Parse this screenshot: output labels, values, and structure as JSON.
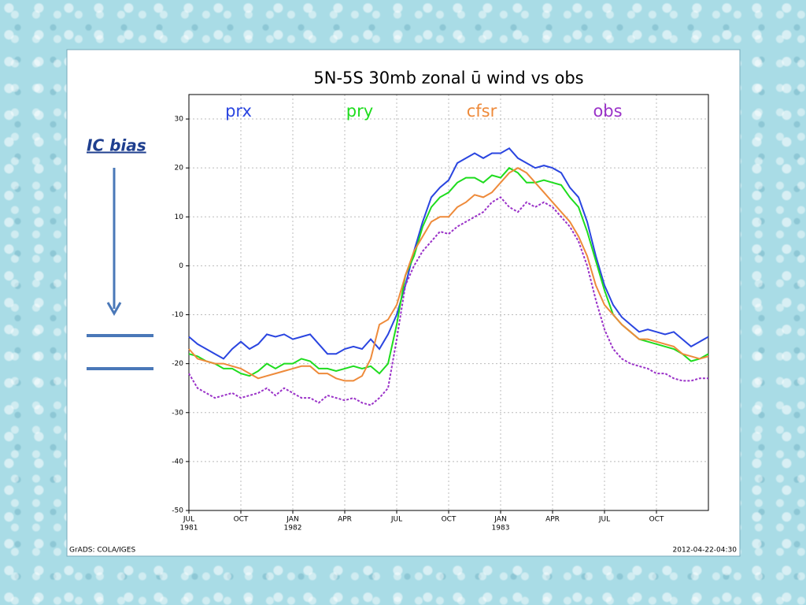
{
  "annotation": {
    "text": "IC bias"
  },
  "chart_data": {
    "type": "line",
    "title": "5N-5S 30mb zonal ū wind vs obs",
    "footer_left": "GrADS: COLA/IGES",
    "footer_right": "2012-04-22-04:30",
    "categories": [
      "JUL",
      null,
      null,
      null,
      null,
      null,
      "OCT",
      null,
      null,
      null,
      null,
      null,
      "JAN",
      null,
      null,
      null,
      null,
      null,
      "APR",
      null,
      null,
      null,
      null,
      null,
      "JUL",
      null,
      null,
      null,
      null,
      null,
      "OCT",
      null,
      null,
      null,
      null,
      null,
      "JAN",
      null,
      null,
      null,
      null,
      null,
      "APR",
      null,
      null,
      null,
      null,
      null,
      "JUL",
      null,
      null,
      null,
      null,
      null,
      "OCT",
      null,
      null,
      null,
      null,
      null,
      null
    ],
    "category_years": [
      "1981",
      null,
      null,
      null,
      null,
      null,
      null,
      null,
      null,
      null,
      null,
      null,
      "1982",
      null,
      null,
      null,
      null,
      null,
      null,
      null,
      null,
      null,
      null,
      null,
      null,
      null,
      null,
      null,
      null,
      null,
      null,
      null,
      null,
      null,
      null,
      null,
      "1983",
      null,
      null,
      null,
      null,
      null,
      null,
      null,
      null,
      null,
      null,
      null,
      null,
      null,
      null,
      null,
      null,
      null,
      null,
      null,
      null,
      null,
      null,
      null,
      null
    ],
    "ylim": [
      -50,
      35
    ],
    "yticks": [
      -50,
      -40,
      -30,
      -20,
      -10,
      0,
      10,
      20,
      30
    ],
    "grid": true,
    "series": [
      {
        "name": "prx",
        "color": "#2a45e0",
        "dashed": false,
        "values": [
          -14.5,
          -16,
          -17,
          -18,
          -19,
          -17,
          -15.5,
          -17,
          -16,
          -14,
          -14.5,
          -14,
          -15,
          -14.5,
          -14,
          -16,
          -18,
          -18,
          -17,
          -16.5,
          -17,
          -15,
          -17,
          -14,
          -10,
          -4,
          3,
          9,
          14,
          16,
          17.5,
          21,
          22,
          23,
          22,
          23,
          23,
          24,
          22,
          21,
          20,
          20.5,
          20,
          19,
          16,
          14,
          9,
          2,
          -4,
          -8,
          -10.5,
          -12,
          -13.5,
          -13,
          -13.5,
          -14,
          -13.5,
          -15,
          -16.5,
          -15.5,
          -14.5
        ]
      },
      {
        "name": "pry",
        "color": "#1edc1e",
        "dashed": false,
        "values": [
          -18,
          -18.5,
          -19.5,
          -20,
          -21,
          -21,
          -22,
          -22.5,
          -21.5,
          -20,
          -21,
          -20,
          -20,
          -19,
          -19.5,
          -21,
          -21,
          -21.5,
          -21,
          -20.5,
          -21,
          -20.5,
          -22,
          -20,
          -12,
          -2,
          2,
          8,
          12,
          14,
          15,
          17,
          18,
          18,
          17,
          18.5,
          18,
          20,
          19,
          17,
          17,
          17.5,
          17,
          16.5,
          14,
          12,
          7,
          1,
          -5,
          -10,
          -12,
          -13.5,
          -15,
          -15.5,
          -16,
          -16.5,
          -17,
          -18,
          -19.5,
          -19,
          -18
        ]
      },
      {
        "name": "cfsr",
        "color": "#ee8a3a",
        "dashed": false,
        "values": [
          -17,
          -19,
          -19.5,
          -20,
          -20,
          -20.5,
          -21,
          -22,
          -23,
          -22.5,
          -22,
          -21.5,
          -21,
          -20.5,
          -20.5,
          -22,
          -22,
          -23,
          -23.5,
          -23.5,
          -22.5,
          -19,
          -12,
          -11,
          -8,
          -2,
          3,
          6,
          9,
          10,
          10,
          12,
          13,
          14.5,
          14,
          15,
          17,
          19,
          20,
          19,
          17,
          15,
          13,
          11,
          9,
          6,
          2,
          -4,
          -8,
          -10,
          -12,
          -13.5,
          -15,
          -15,
          -15.5,
          -16,
          -16.5,
          -18,
          -18.5,
          -19,
          -18.5
        ]
      },
      {
        "name": "obs",
        "color": "#9a32c8",
        "dashed": true,
        "values": [
          -22,
          -25,
          -26,
          -27,
          -26.5,
          -26,
          -27,
          -26.5,
          -26,
          -25,
          -26.5,
          -25,
          -26,
          -27,
          -27,
          -28,
          -26.5,
          -27,
          -27.5,
          -27,
          -28,
          -28.5,
          -27,
          -25,
          -15,
          -4,
          0,
          3,
          5,
          7,
          6.5,
          8,
          9,
          10,
          11,
          13,
          14,
          12,
          11,
          13,
          12,
          13,
          12,
          10,
          8,
          5,
          0,
          -7,
          -13,
          -17,
          -19,
          -20,
          -20.5,
          -21,
          -22,
          -22,
          -23,
          -23.5,
          -23.5,
          -23,
          -23
        ]
      }
    ]
  }
}
